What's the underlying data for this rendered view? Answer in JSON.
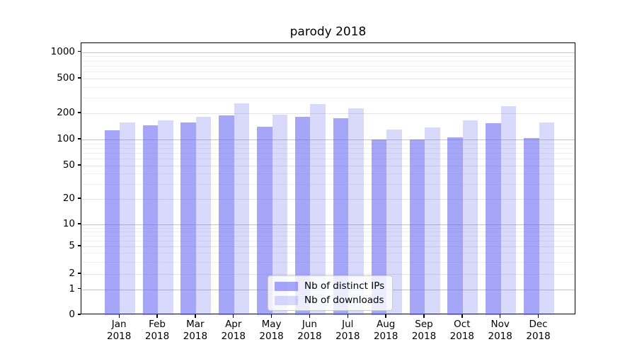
{
  "chart_data": {
    "type": "bar",
    "title": "parody 2018",
    "xlabel": "",
    "ylabel": "",
    "yscale": "symlog (log above 1, linear 0-1)",
    "ylim": [
      0,
      1250
    ],
    "yticks": [
      0,
      1,
      2,
      5,
      10,
      20,
      50,
      100,
      200,
      500,
      1000
    ],
    "grid": true,
    "legend_position": "lower center",
    "months": [
      "Jan",
      "Feb",
      "Mar",
      "Apr",
      "May",
      "Jun",
      "Jul",
      "Aug",
      "Sep",
      "Oct",
      "Nov",
      "Dec"
    ],
    "year": "2018",
    "categories": [
      "Jan 2018",
      "Feb 2018",
      "Mar 2018",
      "Apr 2018",
      "May 2018",
      "Jun 2018",
      "Jul 2018",
      "Aug 2018",
      "Sep 2018",
      "Oct 2018",
      "Nov 2018",
      "Dec 2018"
    ],
    "series": [
      {
        "name": "Nb of distinct IPs",
        "values": [
          128,
          146,
          156,
          188,
          141,
          182,
          177,
          100,
          100,
          105,
          153,
          103
        ]
      },
      {
        "name": "Nb of downloads",
        "values": [
          158,
          166,
          182,
          262,
          194,
          256,
          228,
          130,
          137,
          165,
          241,
          156
        ]
      }
    ]
  },
  "colors": {
    "ips_bar": "rgba(102,102,245,0.58)",
    "downloads_bar": "rgba(102,102,245,0.25)",
    "grid_major": "#c3c3c3",
    "grid_minor": "#e4e4e4",
    "grid_faint": "#efefef",
    "spine": "#000000"
  }
}
